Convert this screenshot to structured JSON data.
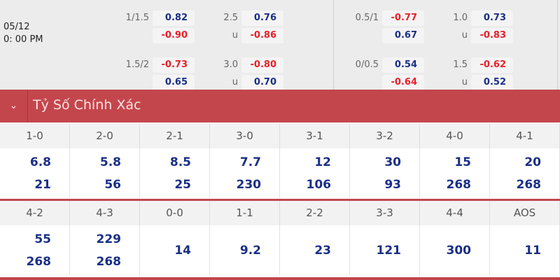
{
  "match": {
    "date": "05/12",
    "time": "0: 00 PM"
  },
  "odds": [
    {
      "hcap": "1/1.5",
      "home": "0.82",
      "away": "-0.90",
      "ou": "2.5",
      "over": "0.76",
      "under_label": "u",
      "under": "-0.86"
    },
    {
      "hcap": "1.5/2",
      "home": "-0.73",
      "away": "0.65",
      "ou": "3.0",
      "over": "-0.80",
      "under_label": "u",
      "under": "0.70"
    },
    {
      "hcap": "0.5/1",
      "home": "-0.77",
      "away": "0.67",
      "ou": "1.0",
      "over": "0.73",
      "under_label": "u",
      "under": "-0.83"
    },
    {
      "hcap": "0/0.5",
      "home": "0.54",
      "away": "-0.64",
      "ou": "1.5",
      "over": "-0.62",
      "under_label": "u",
      "under": "0.52"
    }
  ],
  "section": {
    "title": "Tỷ Số Chính Xác",
    "icon": "chevron-down-icon"
  },
  "scores_row1": [
    {
      "score": "1-0",
      "v": [
        "6.8",
        "21"
      ]
    },
    {
      "score": "2-0",
      "v": [
        "5.8",
        "56"
      ]
    },
    {
      "score": "2-1",
      "v": [
        "8.5",
        "25"
      ]
    },
    {
      "score": "3-0",
      "v": [
        "7.7",
        "230"
      ]
    },
    {
      "score": "3-1",
      "v": [
        "12",
        "106"
      ]
    },
    {
      "score": "3-2",
      "v": [
        "30",
        "93"
      ]
    },
    {
      "score": "4-0",
      "v": [
        "15",
        "268"
      ]
    },
    {
      "score": "4-1",
      "v": [
        "20",
        "268"
      ]
    }
  ],
  "scores_row2": [
    {
      "score": "4-2",
      "v": [
        "55",
        "268"
      ]
    },
    {
      "score": "4-3",
      "v": [
        "229",
        "268"
      ]
    },
    {
      "score": "0-0",
      "v": [
        "14"
      ]
    },
    {
      "score": "1-1",
      "v": [
        "9.2"
      ]
    },
    {
      "score": "2-2",
      "v": [
        "23"
      ]
    },
    {
      "score": "3-3",
      "v": [
        "121"
      ]
    },
    {
      "score": "4-4",
      "v": [
        "300"
      ]
    },
    {
      "score": "AOS",
      "v": [
        "11"
      ]
    }
  ],
  "colors": {
    "header": "#c4464d",
    "positive": "#1a2f86",
    "negative": "#e8202a"
  }
}
